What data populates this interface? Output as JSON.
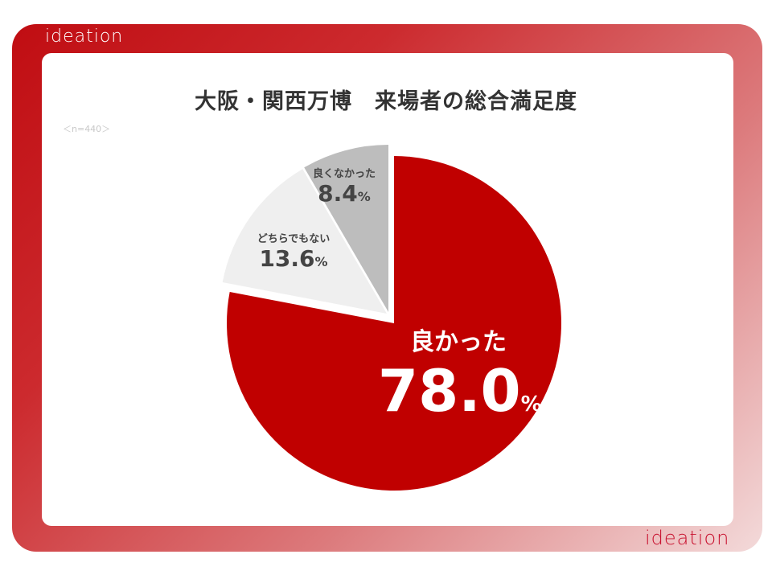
{
  "brand": {
    "logo_text": "ideation",
    "frame_color": "#c00d12"
  },
  "chart_data": {
    "type": "pie",
    "title": "大阪・関西万博　来場者の総合満足度",
    "subtitle": "＜n=440＞",
    "unit": "%",
    "slices": [
      {
        "label": "良かった",
        "value": 78.0,
        "display": "78.0",
        "color": "#c00000"
      },
      {
        "label": "どちらでもない",
        "value": 13.6,
        "display": "13.6",
        "color": "#efefef"
      },
      {
        "label": "良くなかった",
        "value": 8.4,
        "display": "8.4",
        "color": "#bdbdbd"
      }
    ],
    "start_angle": "12 o'clock",
    "direction": "clockwise",
    "legend": "none"
  }
}
